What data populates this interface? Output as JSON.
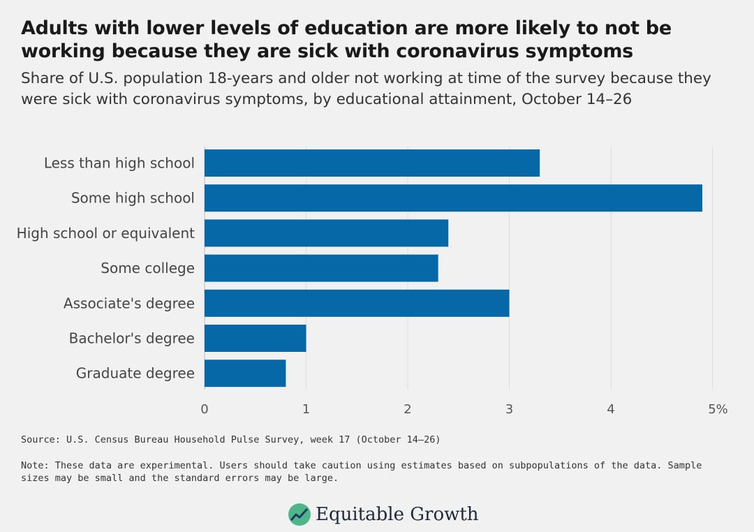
{
  "title": "Adults with lower levels of education are more likely to not be working because they are sick with coronavirus symptoms",
  "subtitle": "Share of U.S. population 18-years and older not working at time of the survey because they were sick with coronavirus symptoms, by educational attainment, October 14–26",
  "source": "Source: U.S. Census Bureau Household Pulse Survey, week 17 (October 14–26)",
  "note": "Note: These data are experimental. Users should take caution using estimates based on subpopulations of the data. Sample sizes may be small and the standard errors may be large.",
  "logo": {
    "text": "Equitable Growth",
    "icon": "rising-line-circle-icon"
  },
  "colors": {
    "bar": "#0668a6",
    "grid": "#dcdcdc",
    "background": "#f1f1f1"
  },
  "chart_data": {
    "type": "bar",
    "orientation": "horizontal",
    "categories": [
      "Less than high school",
      "Some high school",
      "High school or equivalent",
      "Some college",
      "Associate's degree",
      "Bachelor's degree",
      "Graduate degree"
    ],
    "values": [
      3.3,
      4.9,
      2.4,
      2.3,
      3.0,
      1.0,
      0.8
    ],
    "xlim": [
      0,
      5
    ],
    "xticks": [
      "0",
      "1",
      "2",
      "3",
      "4",
      "5%"
    ],
    "grid": true
  }
}
